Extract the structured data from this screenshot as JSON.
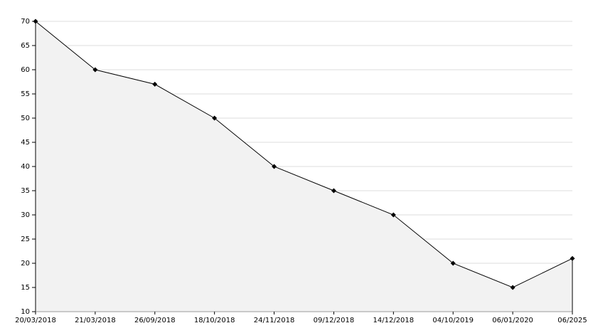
{
  "chart_data": {
    "type": "area",
    "categories": [
      "20/03/2018",
      "21/03/2018",
      "26/09/2018",
      "18/10/2018",
      "24/11/2018",
      "09/12/2018",
      "14/12/2018",
      "04/10/2019",
      "06/01/2020",
      "06/2025"
    ],
    "values": [
      70,
      60,
      57,
      50,
      40,
      35,
      30,
      20,
      15,
      21
    ],
    "color": "#000000",
    "fill": "#f2f2f2",
    "ylim": [
      10,
      70
    ],
    "yticks": [
      10,
      15,
      20,
      25,
      30,
      35,
      40,
      45,
      50,
      55,
      60,
      65,
      70
    ],
    "grid": true
  }
}
